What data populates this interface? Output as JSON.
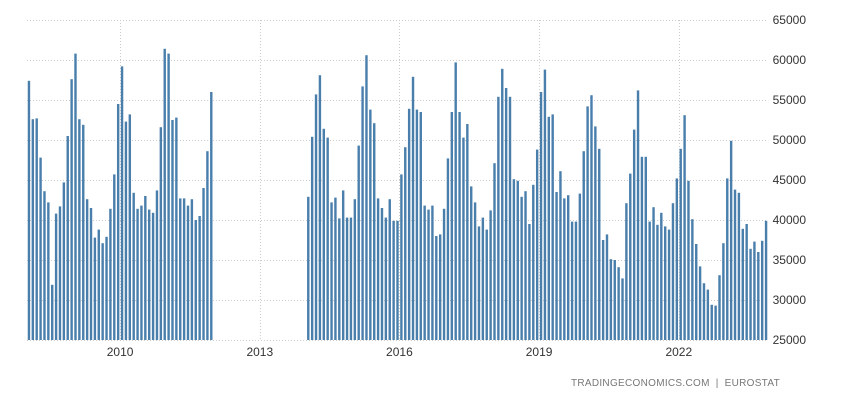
{
  "chart_data": {
    "type": "bar",
    "title": "",
    "xlabel": "",
    "ylabel": "",
    "ylim": [
      25000,
      65000
    ],
    "y_ticks": [
      25000,
      30000,
      35000,
      40000,
      45000,
      50000,
      55000,
      60000,
      65000
    ],
    "x_ticks": [
      "2010",
      "2013",
      "2016",
      "2019",
      "2022"
    ],
    "x_tick_months": [
      24,
      60,
      96,
      132,
      168
    ],
    "grid": true,
    "legend": "none",
    "colors": {
      "bar": "#4a7fac",
      "grid": "#cccccc",
      "text": "#333333",
      "source": "#777777"
    },
    "x_start": "2008-01",
    "x_end": "2023-10",
    "values": [
      57400,
      52600,
      52700,
      47800,
      43600,
      42200,
      31900,
      40800,
      41700,
      44700,
      50500,
      57600,
      60800,
      52600,
      51900,
      42600,
      41500,
      37800,
      38800,
      37100,
      37900,
      41400,
      45700,
      54500,
      59200,
      52300,
      53200,
      43400,
      41400,
      41800,
      43000,
      41300,
      40900,
      43700,
      51600,
      61400,
      60800,
      52500,
      52800,
      42700,
      42700,
      41800,
      42600,
      40000,
      40500,
      44000,
      48600,
      56000,
      null,
      null,
      null,
      null,
      null,
      null,
      null,
      null,
      null,
      null,
      null,
      null,
      null,
      null,
      null,
      null,
      null,
      null,
      null,
      null,
      null,
      null,
      null,
      null,
      42900,
      50400,
      55700,
      58100,
      51400,
      50300,
      42200,
      42800,
      40200,
      43700,
      40300,
      40300,
      42600,
      49300,
      56700,
      60600,
      53800,
      52100,
      42700,
      41500,
      40300,
      42600,
      39900,
      39900,
      45700,
      49100,
      53900,
      57900,
      53800,
      53500,
      41800,
      41300,
      41800,
      38000,
      38200,
      41400,
      47700,
      53500,
      59700,
      53500,
      50300,
      52000,
      44200,
      42200,
      39200,
      40300,
      38800,
      41200,
      47100,
      55400,
      58900,
      56500,
      55400,
      45100,
      44900,
      42900,
      43600,
      39500,
      44400,
      48800,
      56000,
      58800,
      52900,
      53200,
      43500,
      46100,
      42700,
      43100,
      39800,
      39800,
      43300,
      48600,
      54200,
      55600,
      51700,
      48900,
      37500,
      38200,
      35100,
      35000,
      34100,
      32700,
      42100,
      45800,
      51300,
      56200,
      47900,
      47900,
      39800,
      41600,
      39400,
      40900,
      39200,
      38800,
      42100,
      45200,
      48900,
      53100,
      44900,
      40100,
      37000,
      34200,
      32100,
      31300,
      29400,
      29300,
      33100,
      37100,
      45200,
      49900,
      43800,
      43400,
      38900,
      39500,
      36400,
      37300,
      36000,
      37400,
      39900
    ]
  },
  "source": {
    "brand": "TRADINGECONOMICS.COM",
    "separator": "|",
    "provider": "EUROSTAT"
  }
}
